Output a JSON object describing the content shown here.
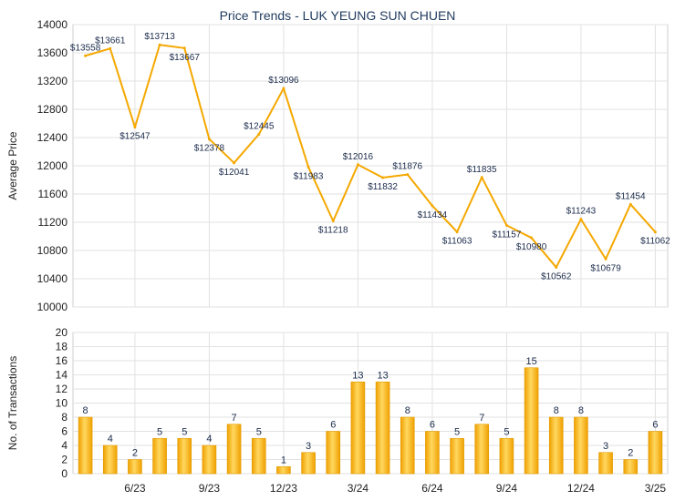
{
  "chart_data": [
    {
      "type": "line",
      "title": "Price Trends - LUK YEUNG SUN CHUEN",
      "ylabel": "Average Price",
      "ylim": [
        10000,
        14000
      ],
      "y_ticks": [
        10000,
        10400,
        10800,
        11200,
        11600,
        12000,
        12400,
        12800,
        13200,
        13600,
        14000
      ],
      "x": [
        "2023-04",
        "2023-05",
        "2023-06",
        "2023-07",
        "2023-08",
        "2023-09",
        "2023-10",
        "2023-11",
        "2023-12",
        "2024-01",
        "2024-02",
        "2024-03",
        "2024-04",
        "2024-05",
        "2024-06",
        "2024-07",
        "2024-08",
        "2024-09",
        "2024-10",
        "2024-11",
        "2024-12",
        "2025-01",
        "2025-02",
        "2025-03"
      ],
      "values": [
        13558,
        13661,
        12547,
        13713,
        13667,
        12378,
        12041,
        12445,
        13096,
        11983,
        11218,
        12016,
        11832,
        11876,
        11434,
        11063,
        11835,
        11157,
        10980,
        10562,
        11243,
        10679,
        11454,
        11062
      ],
      "data_labels": [
        "$13558",
        "$13661",
        "$12547",
        "$13713",
        "$13667",
        "$12378",
        "$12041",
        "$12445",
        "$13096",
        "$11983",
        "$11218",
        "$12016",
        "$11832",
        "$11876",
        "$11434",
        "$11063",
        "$11835",
        "$11157",
        "$10980",
        "$10562",
        "$11243",
        "$10679",
        "$11454",
        "$11062"
      ],
      "line_color": "#f5a800",
      "grid": true
    },
    {
      "type": "bar",
      "ylabel": "No. of Transactions",
      "ylim": [
        0,
        20
      ],
      "y_ticks": [
        0,
        2,
        4,
        6,
        8,
        10,
        12,
        14,
        16,
        18,
        20
      ],
      "x": [
        "2023-04",
        "2023-05",
        "2023-06",
        "2023-07",
        "2023-08",
        "2023-09",
        "2023-10",
        "2023-11",
        "2023-12",
        "2024-01",
        "2024-02",
        "2024-03",
        "2024-04",
        "2024-05",
        "2024-06",
        "2024-07",
        "2024-08",
        "2024-09",
        "2024-10",
        "2024-11",
        "2024-12",
        "2025-01",
        "2025-02",
        "2025-03"
      ],
      "values": [
        8,
        4,
        2,
        5,
        5,
        4,
        7,
        5,
        1,
        3,
        6,
        13,
        13,
        8,
        6,
        5,
        7,
        5,
        15,
        8,
        8,
        3,
        2,
        6
      ],
      "bar_color": "#f5a800",
      "grid": true
    }
  ],
  "x_tick_labels": [
    {
      "index": 2,
      "label": "6/23"
    },
    {
      "index": 5,
      "label": "9/23"
    },
    {
      "index": 8,
      "label": "12/23"
    },
    {
      "index": 11,
      "label": "3/24"
    },
    {
      "index": 14,
      "label": "6/24"
    },
    {
      "index": 17,
      "label": "9/24"
    },
    {
      "index": 20,
      "label": "12/24"
    },
    {
      "index": 23,
      "label": "3/25"
    }
  ]
}
